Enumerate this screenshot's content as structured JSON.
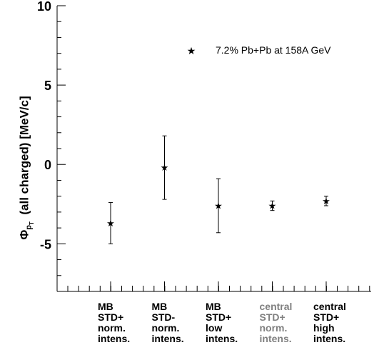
{
  "chart_data": {
    "type": "scatter",
    "ylabel": "Φ_pT (all charged)  [MeV/c]",
    "ylabel_parts": {
      "main": "Φ",
      "sub": "p",
      "subsub": "T",
      "rest": "(all charged)   [MeV/c]"
    },
    "ylim": [
      -8,
      10
    ],
    "yticks": [
      "-5",
      "0",
      "5",
      "10"
    ],
    "legend": {
      "label": "7.2% Pb+Pb at 158A GeV",
      "marker": "star",
      "position": "top-right"
    },
    "categories": [
      {
        "lines": [
          "MB",
          "STD+",
          "norm.",
          "intens."
        ],
        "color": "#000000"
      },
      {
        "lines": [
          "MB",
          "STD-",
          "norm.",
          "intens."
        ],
        "color": "#000000"
      },
      {
        "lines": [
          "MB",
          "STD+",
          "low",
          "intens."
        ],
        "color": "#000000"
      },
      {
        "lines": [
          "central",
          "STD+",
          "norm.",
          "intens."
        ],
        "color": "#808080"
      },
      {
        "lines": [
          "central",
          "STD+",
          "high",
          "intens."
        ],
        "color": "#000000"
      }
    ],
    "series": [
      {
        "values": [
          -3.7,
          -0.2,
          -2.6,
          -2.6,
          -2.3
        ],
        "errors": [
          1.3,
          2.0,
          1.7,
          0.3,
          0.3
        ]
      }
    ],
    "grid": false
  }
}
